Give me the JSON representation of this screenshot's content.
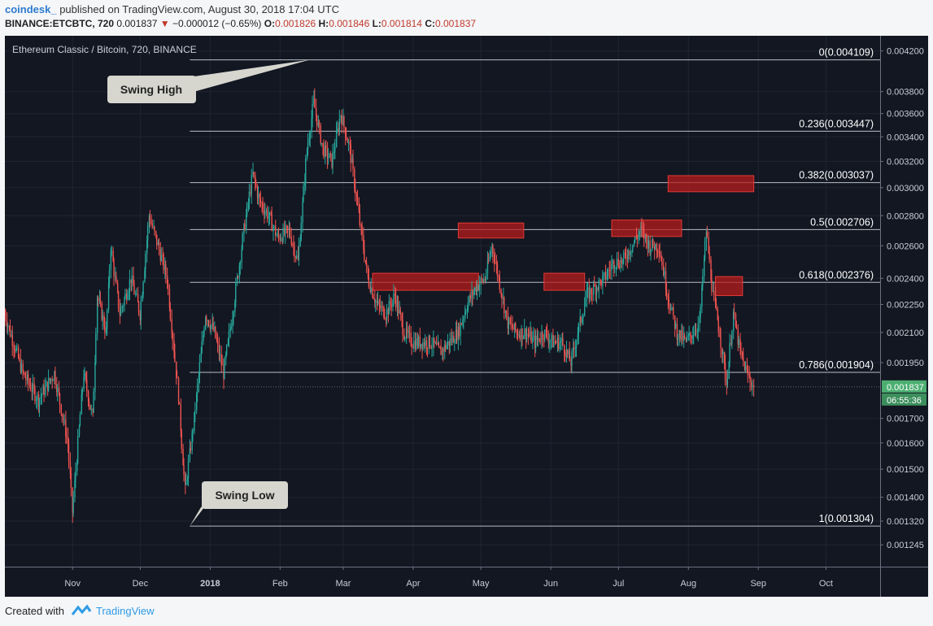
{
  "header": {
    "author": "coindesk_",
    "published": " published on TradingView.com, August 30, 2018 17:04 UTC",
    "symbol": "BINANCE:ETCBTC, 720",
    "last": "0.001837",
    "change_arrow": "▼",
    "change": "−0.000012 (−0.65%)",
    "o_label": "O:",
    "o_value": "0.001826",
    "h_label": "H:",
    "h_value": "0.001846",
    "l_label": "L:",
    "l_value": "0.001814",
    "c_label": "C:",
    "c_value": "0.001837"
  },
  "footer": {
    "created_with": "Created with",
    "brand": "TradingView"
  },
  "colors": {
    "background": "#131722",
    "up": "#26a69a",
    "down": "#ef5350",
    "fib_line": "#b9bdc6",
    "zone_fill": "#b71c1c",
    "price_tag": "#4caf71"
  },
  "chart_data": {
    "type": "candlestick",
    "title": "Ethereum Classic / Bitcoin, 720, BINANCE",
    "x_tick_labels": [
      "Nov",
      "Dec",
      "2018",
      "Feb",
      "Mar",
      "Apr",
      "May",
      "Jun",
      "Jul",
      "Aug",
      "Sep",
      "Oct"
    ],
    "x_ticks": [
      "2017-11-01",
      "2017-12-01",
      "2018-01-01",
      "2018-02-01",
      "2018-03-01",
      "2018-04-01",
      "2018-05-01",
      "2018-06-01",
      "2018-07-01",
      "2018-08-01",
      "2018-09-01",
      "2018-10-01"
    ],
    "x_range": [
      "2017-10-02",
      "2018-10-25"
    ],
    "y_tick_labels": [
      "0.004200",
      "0.003800",
      "0.003600",
      "0.003400",
      "0.003200",
      "0.003000",
      "0.002800",
      "0.002600",
      "0.002400",
      "0.002250",
      "0.002100",
      "0.001950",
      "0.001700",
      "0.001600",
      "0.001500",
      "0.001400",
      "0.001320",
      "0.001245"
    ],
    "y_ticks": [
      0.0042,
      0.0038,
      0.0036,
      0.0034,
      0.0032,
      0.003,
      0.0028,
      0.0026,
      0.0024,
      0.00225,
      0.0021,
      0.00195,
      0.0017,
      0.0016,
      0.0015,
      0.0014,
      0.00132,
      0.001245
    ],
    "y_scale": "log",
    "ylim": [
      0.00118,
      0.00436
    ],
    "last_price_label": "0.001837",
    "last_price": 0.001837,
    "countdown_label": "06:55:36",
    "price_path": [
      [
        "2017-10-02",
        0.0022
      ],
      [
        "2017-10-10",
        0.0019
      ],
      [
        "2017-10-17",
        0.00178
      ],
      [
        "2017-10-24",
        0.0019
      ],
      [
        "2017-10-30",
        0.0016
      ],
      [
        "2017-11-01",
        0.00135
      ],
      [
        "2017-11-06",
        0.0019
      ],
      [
        "2017-11-10",
        0.0017
      ],
      [
        "2017-11-12",
        0.0023
      ],
      [
        "2017-11-16",
        0.0021
      ],
      [
        "2017-11-18",
        0.0026
      ],
      [
        "2017-11-22",
        0.0022
      ],
      [
        "2017-11-27",
        0.0024
      ],
      [
        "2017-12-01",
        0.0022
      ],
      [
        "2017-12-05",
        0.0028
      ],
      [
        "2017-12-09",
        0.0026
      ],
      [
        "2017-12-13",
        0.0024
      ],
      [
        "2017-12-18",
        0.0018
      ],
      [
        "2017-12-21",
        0.00142
      ],
      [
        "2017-12-25",
        0.0017
      ],
      [
        "2017-12-30",
        0.0022
      ],
      [
        "2018-01-03",
        0.0021
      ],
      [
        "2018-01-07",
        0.0019
      ],
      [
        "2018-01-11",
        0.0022
      ],
      [
        "2018-01-16",
        0.0027
      ],
      [
        "2018-01-20",
        0.0031
      ],
      [
        "2018-01-23",
        0.0029
      ],
      [
        "2018-01-27",
        0.0028
      ],
      [
        "2018-01-31",
        0.00265
      ],
      [
        "2018-02-05",
        0.0027
      ],
      [
        "2018-02-09",
        0.0025
      ],
      [
        "2018-02-13",
        0.0033
      ],
      [
        "2018-02-16",
        0.0037
      ],
      [
        "2018-02-20",
        0.0033
      ],
      [
        "2018-02-24",
        0.0032
      ],
      [
        "2018-02-28",
        0.0036
      ],
      [
        "2018-03-04",
        0.0033
      ],
      [
        "2018-03-08",
        0.0028
      ],
      [
        "2018-03-12",
        0.0024
      ],
      [
        "2018-03-16",
        0.00225
      ],
      [
        "2018-03-20",
        0.0022
      ],
      [
        "2018-03-24",
        0.0023
      ],
      [
        "2018-03-28",
        0.0021
      ],
      [
        "2018-04-01",
        0.00205
      ],
      [
        "2018-04-05",
        0.00205
      ],
      [
        "2018-04-09",
        0.00205
      ],
      [
        "2018-04-13",
        0.002
      ],
      [
        "2018-04-17",
        0.00205
      ],
      [
        "2018-04-21",
        0.0021
      ],
      [
        "2018-04-25",
        0.00225
      ],
      [
        "2018-04-29",
        0.00235
      ],
      [
        "2018-05-03",
        0.0024
      ],
      [
        "2018-05-06",
        0.0026
      ],
      [
        "2018-05-09",
        0.0024
      ],
      [
        "2018-05-13",
        0.00215
      ],
      [
        "2018-05-17",
        0.0021
      ],
      [
        "2018-05-21",
        0.0021
      ],
      [
        "2018-05-25",
        0.00205
      ],
      [
        "2018-05-29",
        0.0021
      ],
      [
        "2018-06-02",
        0.00205
      ],
      [
        "2018-06-06",
        0.00205
      ],
      [
        "2018-06-10",
        0.00195
      ],
      [
        "2018-06-13",
        0.0021
      ],
      [
        "2018-06-17",
        0.0023
      ],
      [
        "2018-06-21",
        0.00235
      ],
      [
        "2018-06-25",
        0.0024
      ],
      [
        "2018-06-29",
        0.0025
      ],
      [
        "2018-07-03",
        0.0025
      ],
      [
        "2018-07-07",
        0.0026
      ],
      [
        "2018-07-11",
        0.0027
      ],
      [
        "2018-07-15",
        0.0026
      ],
      [
        "2018-07-19",
        0.0026
      ],
      [
        "2018-07-23",
        0.0023
      ],
      [
        "2018-07-27",
        0.0021
      ],
      [
        "2018-07-31",
        0.00205
      ],
      [
        "2018-08-03",
        0.0021
      ],
      [
        "2018-08-06",
        0.00215
      ],
      [
        "2018-08-09",
        0.0027
      ],
      [
        "2018-08-12",
        0.0023
      ],
      [
        "2018-08-15",
        0.0021
      ],
      [
        "2018-08-18",
        0.00185
      ],
      [
        "2018-08-21",
        0.0022
      ],
      [
        "2018-08-24",
        0.002
      ],
      [
        "2018-08-27",
        0.0019
      ],
      [
        "2018-08-30",
        0.001837
      ]
    ],
    "fib_levels": [
      {
        "label": "0(0.004109)",
        "ratio": 0,
        "price": 0.004109
      },
      {
        "label": "0.236(0.003447)",
        "ratio": 0.236,
        "price": 0.003447
      },
      {
        "label": "0.382(0.003037)",
        "ratio": 0.382,
        "price": 0.003037
      },
      {
        "label": "0.5(0.002706)",
        "ratio": 0.5,
        "price": 0.002706
      },
      {
        "label": "0.618(0.002376)",
        "ratio": 0.618,
        "price": 0.002376
      },
      {
        "label": "0.786(0.001904)",
        "ratio": 0.786,
        "price": 0.001904
      },
      {
        "label": "1(0.001304)",
        "ratio": 1,
        "price": 0.001304
      }
    ],
    "fib_start": "2017-12-23",
    "resistance_zones": [
      {
        "start": "2018-03-14",
        "end": "2018-04-30",
        "low": 0.00233,
        "high": 0.00243
      },
      {
        "start": "2018-04-21",
        "end": "2018-05-20",
        "low": 0.00265,
        "high": 0.00275
      },
      {
        "start": "2018-05-29",
        "end": "2018-06-16",
        "low": 0.00233,
        "high": 0.00243
      },
      {
        "start": "2018-06-28",
        "end": "2018-07-29",
        "low": 0.00266,
        "high": 0.00277
      },
      {
        "start": "2018-07-23",
        "end": "2018-08-30",
        "low": 0.00297,
        "high": 0.00309
      },
      {
        "start": "2018-08-13",
        "end": "2018-08-25",
        "low": 0.0023,
        "high": 0.00241
      }
    ],
    "annotations": [
      {
        "text": "Swing High",
        "date": "2018-02-14",
        "price": 0.004109
      },
      {
        "text": "Swing Low",
        "date": "2017-12-23",
        "price": 0.001304
      }
    ]
  }
}
